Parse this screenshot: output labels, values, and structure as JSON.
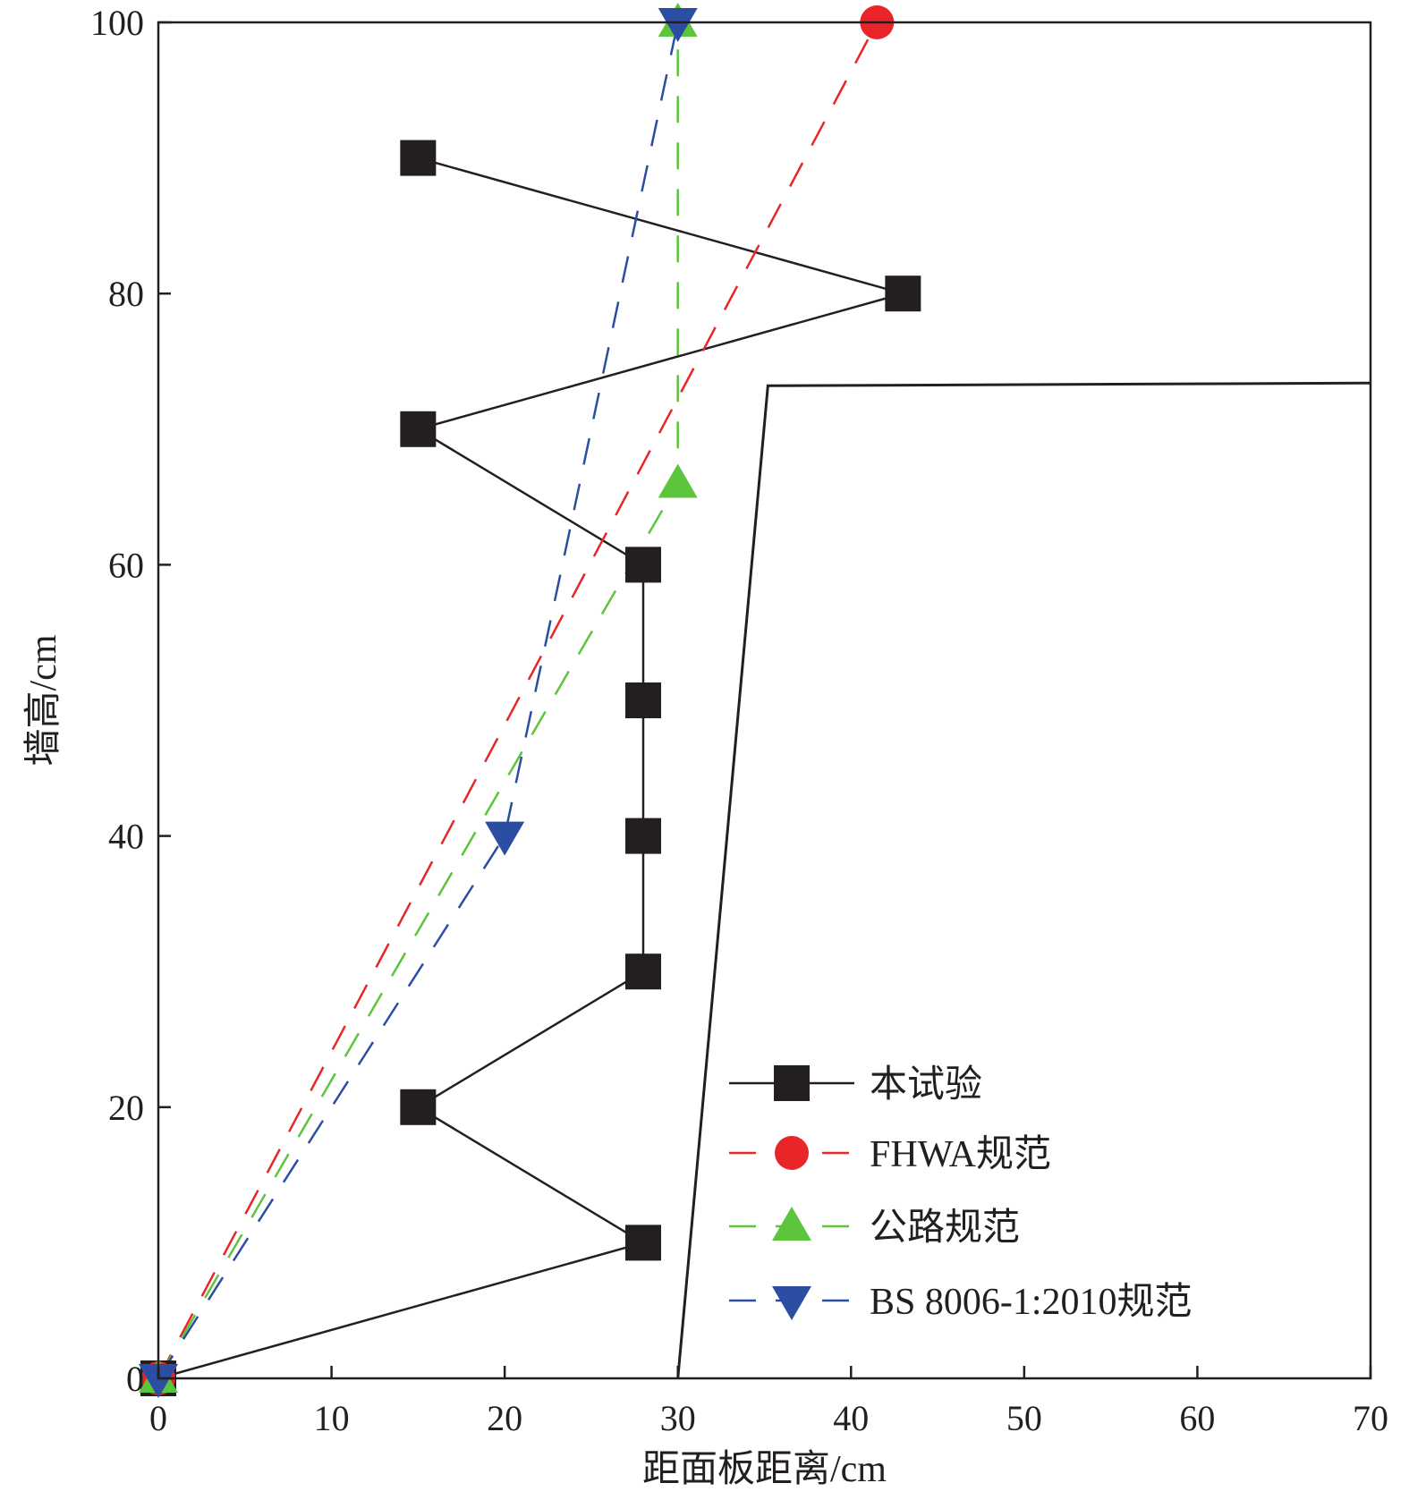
{
  "chart_data": {
    "type": "line",
    "xlabel": "距面板距离/cm",
    "ylabel": "墙高/cm",
    "xlim": [
      0,
      70
    ],
    "ylim": [
      0,
      100
    ],
    "xticks": [
      "0",
      "10",
      "20",
      "30",
      "40",
      "50",
      "60",
      "70"
    ],
    "yticks": [
      "0",
      "20",
      "40",
      "60",
      "80",
      "100"
    ],
    "grid": false,
    "legend_position": "bottom-right",
    "series": [
      {
        "name": "本试验",
        "color": "#231f20",
        "line_style": "solid",
        "marker": "square",
        "points": [
          [
            0,
            0
          ],
          [
            28,
            10
          ],
          [
            15,
            20
          ],
          [
            28,
            30
          ],
          [
            28,
            40
          ],
          [
            28,
            50
          ],
          [
            28,
            60
          ],
          [
            15,
            70
          ],
          [
            43,
            80
          ],
          [
            15,
            90
          ]
        ]
      },
      {
        "name": "FHWA规范",
        "color": "#e8262a",
        "line_style": "dashed",
        "marker": "circle",
        "points": [
          [
            0,
            0
          ],
          [
            41.5,
            100
          ]
        ]
      },
      {
        "name": "公路规范",
        "color": "#5cc53c",
        "line_style": "dashed",
        "marker": "triangle-up",
        "points": [
          [
            0,
            0
          ],
          [
            30,
            66
          ],
          [
            30,
            100
          ]
        ]
      },
      {
        "name": "BS 8006-1:2010规范",
        "color": "#2b4ea2",
        "line_style": "dashed",
        "marker": "triangle-down",
        "points": [
          [
            0,
            0
          ],
          [
            20,
            40
          ],
          [
            30,
            100
          ]
        ]
      }
    ],
    "annotation_line": {
      "color": "#231f20",
      "line_style": "solid",
      "marker": "none",
      "points": [
        [
          30,
          0
        ],
        [
          35.2,
          73.2
        ],
        [
          70,
          73.4
        ]
      ]
    }
  }
}
